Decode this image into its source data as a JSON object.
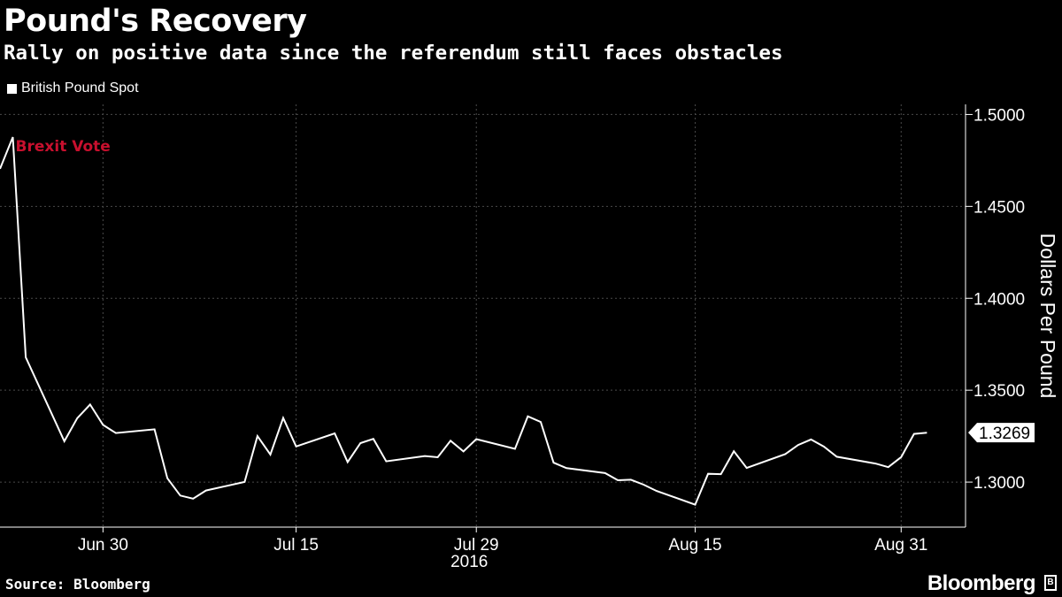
{
  "header": {
    "title": "Pound's Recovery",
    "subtitle": "Rally on positive data since the referendum still faces obstacles"
  },
  "legend": {
    "label": "British Pound Spot"
  },
  "footer": {
    "source": "Source: Bloomberg",
    "brand": "Bloomberg"
  },
  "colors": {
    "background": "#000000",
    "line": "#ffffff",
    "annotation": "#c8102e",
    "grid": "#4a4a4a"
  },
  "chart_data": {
    "type": "line",
    "title": "Pound's Recovery",
    "subtitle": "Rally on positive data since the referendum still faces obstacles",
    "ylabel": "Dollars Per Pound",
    "xlabel": "",
    "year_label": "2016",
    "ylim": [
      1.2755,
      1.5055
    ],
    "xlim": [
      "2016-06-22",
      "2016-09-05"
    ],
    "grid": true,
    "legend_position": "top-left",
    "series": [
      {
        "name": "British Pound Spot",
        "points": [
          [
            "2016-06-22",
            1.4704
          ],
          [
            "2016-06-23",
            1.4877
          ],
          [
            "2016-06-24",
            1.3679
          ],
          [
            "2016-06-27",
            1.3222
          ],
          [
            "2016-06-28",
            1.3348
          ],
          [
            "2016-06-29",
            1.3422
          ],
          [
            "2016-06-30",
            1.3311
          ],
          [
            "2016-07-01",
            1.3267
          ],
          [
            "2016-07-04",
            1.3287
          ],
          [
            "2016-07-05",
            1.3021
          ],
          [
            "2016-07-06",
            1.2927
          ],
          [
            "2016-07-07",
            1.291
          ],
          [
            "2016-07-08",
            1.2954
          ],
          [
            "2016-07-11",
            1.3001
          ],
          [
            "2016-07-12",
            1.325
          ],
          [
            "2016-07-13",
            1.315
          ],
          [
            "2016-07-14",
            1.3349
          ],
          [
            "2016-07-15",
            1.3194
          ],
          [
            "2016-07-18",
            1.3265
          ],
          [
            "2016-07-19",
            1.3109
          ],
          [
            "2016-07-20",
            1.3212
          ],
          [
            "2016-07-21",
            1.3235
          ],
          [
            "2016-07-22",
            1.3113
          ],
          [
            "2016-07-25",
            1.3142
          ],
          [
            "2016-07-26",
            1.3135
          ],
          [
            "2016-07-27",
            1.3225
          ],
          [
            "2016-07-28",
            1.3167
          ],
          [
            "2016-07-29",
            1.3234
          ],
          [
            "2016-08-01",
            1.3181
          ],
          [
            "2016-08-02",
            1.3358
          ],
          [
            "2016-08-03",
            1.3327
          ],
          [
            "2016-08-04",
            1.3106
          ],
          [
            "2016-08-05",
            1.3076
          ],
          [
            "2016-08-08",
            1.3049
          ],
          [
            "2016-08-09",
            1.301
          ],
          [
            "2016-08-10",
            1.3013
          ],
          [
            "2016-08-11",
            1.2986
          ],
          [
            "2016-08-12",
            1.2952
          ],
          [
            "2016-08-15",
            1.2877
          ],
          [
            "2016-08-16",
            1.3045
          ],
          [
            "2016-08-17",
            1.3043
          ],
          [
            "2016-08-18",
            1.3168
          ],
          [
            "2016-08-19",
            1.3077
          ],
          [
            "2016-08-22",
            1.3152
          ],
          [
            "2016-08-23",
            1.3202
          ],
          [
            "2016-08-24",
            1.3232
          ],
          [
            "2016-08-25",
            1.3193
          ],
          [
            "2016-08-26",
            1.3138
          ],
          [
            "2016-08-29",
            1.3101
          ],
          [
            "2016-08-30",
            1.3081
          ],
          [
            "2016-08-31",
            1.3136
          ],
          [
            "2016-09-01",
            1.3262
          ],
          [
            "2016-09-02",
            1.3269
          ]
        ]
      }
    ],
    "last_value_label": "1.3269",
    "annotations": [
      {
        "text": "Brexit Vote",
        "x": "2016-06-23"
      }
    ],
    "x_ticks": [
      {
        "date": "2016-06-30",
        "label": "Jun 30"
      },
      {
        "date": "2016-07-15",
        "label": "Jul 15"
      },
      {
        "date": "2016-07-29",
        "label": "Jul 29"
      },
      {
        "date": "2016-08-15",
        "label": "Aug 15"
      },
      {
        "date": "2016-08-31",
        "label": "Aug 31"
      }
    ],
    "y_ticks": [
      "1.3000",
      "1.3500",
      "1.4000",
      "1.4500",
      "1.5000"
    ]
  }
}
